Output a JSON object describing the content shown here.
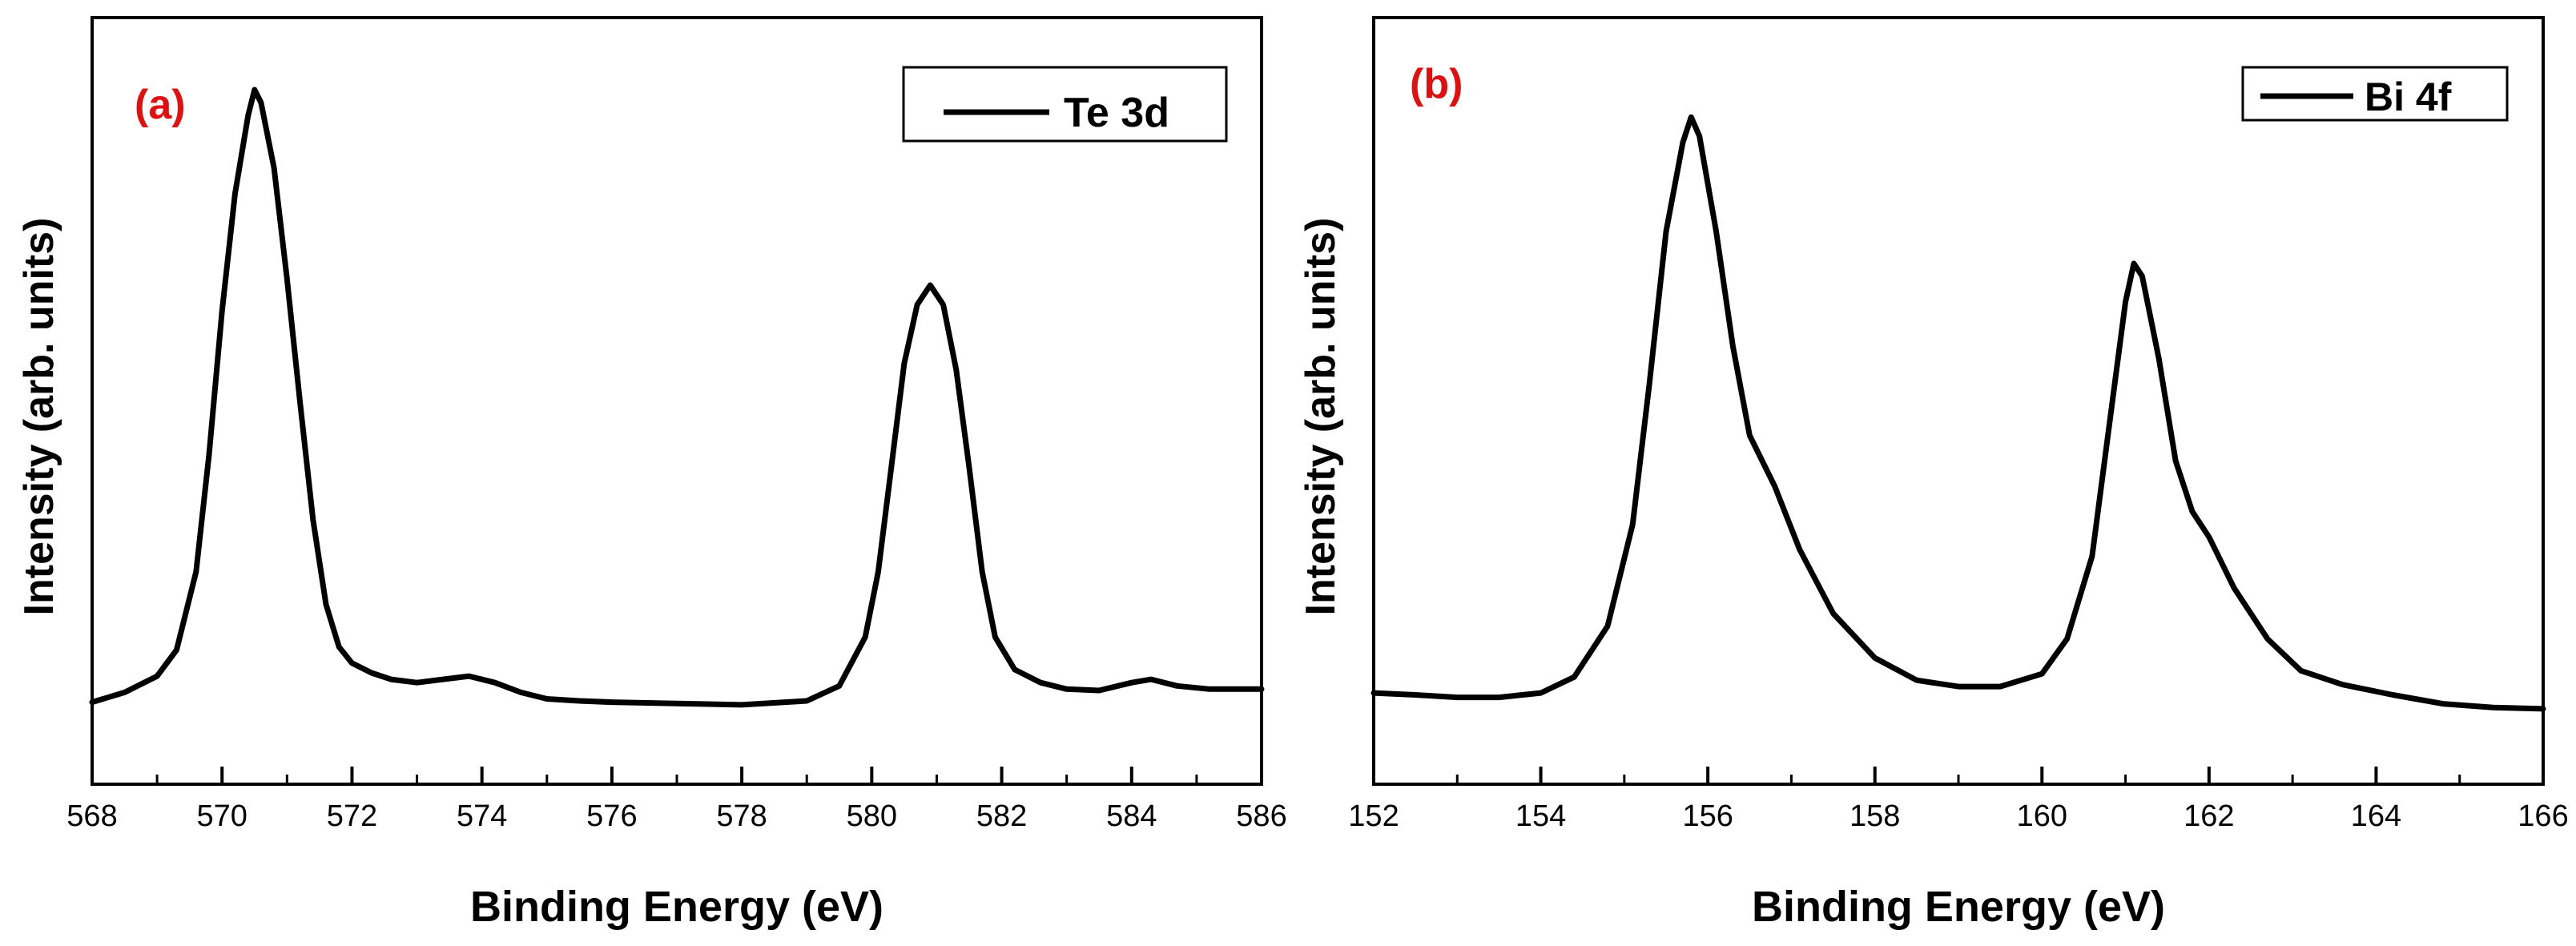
{
  "colors": {
    "line": "#000000",
    "panel_label": "#e01010",
    "background": "#ffffff"
  },
  "chart_data": [
    {
      "type": "line",
      "panel_label": "(a)",
      "xlabel": "Binding Energy (eV)",
      "ylabel": "Intensity (arb. units)",
      "xlim": [
        568,
        586
      ],
      "ylim": [
        0,
        100
      ],
      "x_ticks": [
        568,
        570,
        572,
        574,
        576,
        578,
        580,
        582,
        584,
        586
      ],
      "x_tick_labels": [
        "568",
        "570",
        "572",
        "574",
        "576",
        "578",
        "580",
        "582",
        "584",
        "586"
      ],
      "legend": "Te 3d",
      "legend_position": "top-right",
      "series": [
        {
          "name": "Te 3d",
          "x": [
            568.0,
            568.5,
            569.0,
            569.3,
            569.6,
            569.8,
            570.0,
            570.2,
            570.4,
            570.5,
            570.6,
            570.8,
            571.0,
            571.2,
            571.4,
            571.6,
            571.8,
            572.0,
            572.3,
            572.6,
            573.0,
            573.4,
            573.8,
            574.2,
            574.6,
            575.0,
            575.5,
            576.0,
            577.0,
            578.0,
            579.0,
            579.5,
            579.9,
            580.1,
            580.3,
            580.5,
            580.7,
            580.9,
            581.1,
            581.3,
            581.5,
            581.7,
            581.9,
            582.2,
            582.6,
            583.0,
            583.5,
            584.0,
            584.3,
            584.7,
            585.2,
            586.0
          ],
          "y": [
            2.0,
            3.5,
            6.0,
            10.0,
            22.0,
            40.0,
            62.0,
            80.0,
            92.0,
            96.0,
            94.0,
            84.0,
            67.0,
            48.0,
            30.0,
            17.0,
            10.5,
            8.0,
            6.5,
            5.5,
            5.0,
            5.5,
            6.0,
            5.0,
            3.5,
            2.5,
            2.2,
            2.0,
            1.8,
            1.6,
            2.2,
            4.5,
            12.0,
            22.0,
            38.0,
            54.0,
            63.0,
            66.0,
            63.0,
            53.0,
            38.0,
            22.0,
            12.0,
            7.0,
            5.0,
            4.0,
            3.8,
            5.0,
            5.5,
            4.5,
            4.0,
            4.0
          ]
        }
      ]
    },
    {
      "type": "line",
      "panel_label": "(b)",
      "xlabel": "Binding Energy (eV)",
      "ylabel": "Intensity (arb. units)",
      "xlim": [
        152,
        166
      ],
      "ylim": [
        0,
        100
      ],
      "x_ticks": [
        152,
        154,
        156,
        158,
        160,
        162,
        164,
        166
      ],
      "x_tick_labels": [
        "152",
        "154",
        "156",
        "158",
        "160",
        "162",
        "164",
        "166"
      ],
      "legend": "Bi 4f",
      "legend_position": "top-right",
      "series": [
        {
          "name": "Bi 4f",
          "x": [
            152.0,
            152.5,
            153.0,
            153.5,
            154.0,
            154.4,
            154.8,
            155.1,
            155.3,
            155.5,
            155.7,
            155.8,
            155.9,
            156.1,
            156.3,
            156.5,
            156.8,
            157.1,
            157.5,
            158.0,
            158.5,
            159.0,
            159.5,
            160.0,
            160.3,
            160.6,
            160.8,
            161.0,
            161.1,
            161.2,
            161.4,
            161.6,
            161.8,
            162.0,
            162.3,
            162.7,
            163.1,
            163.6,
            164.2,
            164.8,
            165.4,
            166.0
          ],
          "y": [
            3.5,
            3.2,
            2.8,
            2.8,
            3.5,
            6.0,
            14.0,
            30.0,
            52.0,
            76.0,
            90.0,
            94.0,
            91.0,
            76.0,
            58.0,
            44.0,
            36.0,
            26.0,
            16.0,
            9.0,
            5.5,
            4.5,
            4.5,
            6.5,
            12.0,
            25.0,
            45.0,
            65.0,
            71.0,
            69.0,
            56.0,
            40.0,
            32.0,
            28.0,
            20.0,
            12.0,
            7.0,
            4.8,
            3.2,
            1.8,
            1.2,
            1.0
          ]
        }
      ]
    }
  ]
}
